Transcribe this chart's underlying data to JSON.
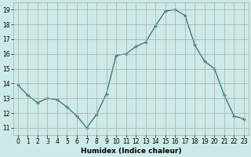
{
  "x": [
    0,
    1,
    2,
    3,
    4,
    5,
    6,
    7,
    8,
    9,
    10,
    11,
    12,
    13,
    14,
    15,
    16,
    17,
    18,
    19,
    20,
    21,
    22,
    23
  ],
  "y": [
    13.9,
    13.2,
    12.7,
    13.0,
    12.9,
    12.4,
    11.8,
    11.0,
    11.9,
    13.3,
    15.9,
    16.0,
    16.5,
    16.8,
    17.9,
    18.9,
    19.0,
    18.6,
    16.6,
    15.5,
    15.0,
    13.2,
    11.8,
    11.6
  ],
  "line_color": "#2d7070",
  "marker": "+",
  "marker_size": 3,
  "marker_linewidth": 1.0,
  "bg_color": "#cceae8",
  "grid_color": "#b0a8a8",
  "xlabel": "Humidex (Indice chaleur)",
  "ylim": [
    10.5,
    19.5
  ],
  "xlim": [
    -0.5,
    23.5
  ],
  "yticks": [
    11,
    12,
    13,
    14,
    15,
    16,
    17,
    18,
    19
  ],
  "xticks": [
    0,
    1,
    2,
    3,
    4,
    5,
    6,
    7,
    8,
    9,
    10,
    11,
    12,
    13,
    14,
    15,
    16,
    17,
    18,
    19,
    20,
    21,
    22,
    23
  ],
  "label_fontsize": 6.5,
  "tick_fontsize": 5.5,
  "linewidth": 0.9
}
